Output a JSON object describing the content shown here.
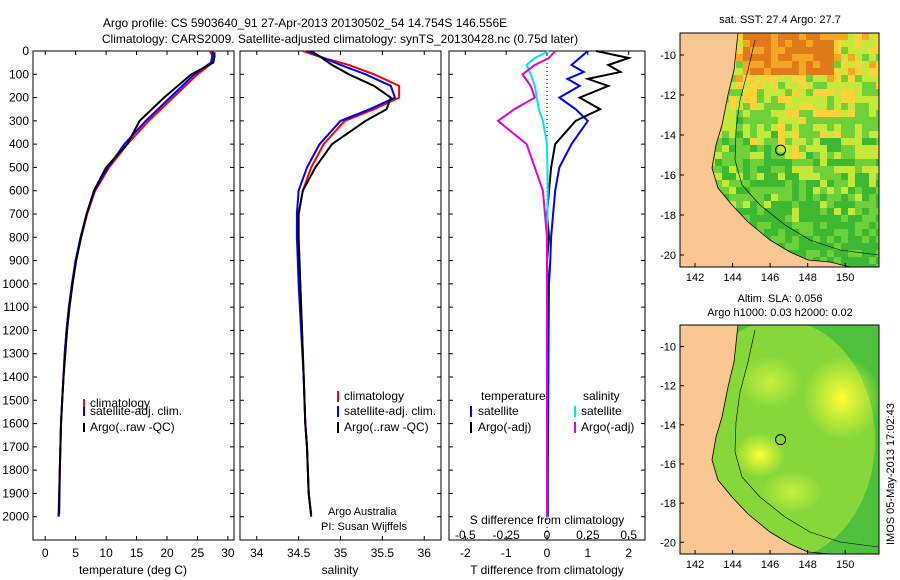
{
  "header": {
    "line1": "Argo profile: CS 5903640_91 27-Apr-2013 20130502_54 14.754S 146.556E",
    "line2": "Climatology: CARS2009. Satellite-adjusted climatology: synTS_20130428.nc (0.75d later)"
  },
  "colors": {
    "climatology": "#ff0000",
    "satellite": "#0000ff",
    "argo": "#000000",
    "sal_satellite": "#00e5ee",
    "sal_argo": "#e000e0",
    "land": "#f9c591"
  },
  "chart_data": [
    {
      "type": "line",
      "xlabel": "temperature (deg C)",
      "ylabel": "",
      "xlim": [
        -2,
        31
      ],
      "ylim": [
        2100,
        0
      ],
      "xticks": [
        "0",
        "5",
        "10",
        "15",
        "20",
        "25",
        "30"
      ],
      "yticks": [
        "0",
        "100",
        "200",
        "300",
        "400",
        "500",
        "600",
        "700",
        "800",
        "900",
        "1000",
        "1100",
        "1200",
        "1300",
        "1400",
        "1500",
        "1600",
        "1700",
        "1800",
        "1900",
        "2000"
      ],
      "legend": {
        "placement": "lower-left",
        "entries": [
          "climatology",
          "satellite-adj. clim.",
          "Argo(..raw -QC)"
        ]
      },
      "series": [
        {
          "name": "climatology",
          "x": [
            27.0,
            27.6,
            27.5,
            25.0,
            21.0,
            17.0,
            13.5,
            10.5,
            8.2,
            6.9,
            5.9,
            5.0,
            4.4,
            3.9,
            3.5,
            3.2,
            3.0,
            2.8,
            2.6,
            2.4,
            2.2
          ],
          "y": [
            0,
            25,
            50,
            100,
            200,
            300,
            400,
            500,
            600,
            700,
            800,
            900,
            1000,
            1100,
            1200,
            1300,
            1400,
            1500,
            1600,
            1800,
            2000
          ]
        },
        {
          "name": "satellite-adj. clim.",
          "x": [
            27.5,
            27.4,
            27.2,
            24.5,
            20.5,
            16.5,
            13.0,
            10.3,
            8.1,
            6.8,
            5.8,
            5.0,
            4.4,
            3.9,
            3.5,
            3.2,
            3.0,
            2.8,
            2.6,
            2.4,
            2.2
          ],
          "y": [
            0,
            25,
            50,
            100,
            200,
            300,
            400,
            500,
            600,
            700,
            800,
            900,
            1000,
            1100,
            1200,
            1300,
            1400,
            1500,
            1600,
            1800,
            2000
          ]
        },
        {
          "name": "Argo(..raw -QC)",
          "x": [
            27.8,
            27.8,
            27.6,
            24.0,
            19.5,
            15.5,
            13.5,
            10.0,
            8.0,
            6.8,
            5.9,
            5.1,
            4.5,
            4.0,
            3.6,
            3.3,
            3.0,
            2.8,
            2.6,
            2.4,
            2.3
          ],
          "y": [
            5,
            25,
            50,
            100,
            200,
            300,
            400,
            500,
            600,
            700,
            800,
            900,
            1000,
            1100,
            1200,
            1300,
            1400,
            1500,
            1600,
            1800,
            1990
          ]
        }
      ]
    },
    {
      "type": "line",
      "xlabel": "salinity",
      "ylabel": "",
      "xlim": [
        33.8,
        36.2
      ],
      "ylim": [
        2100,
        0
      ],
      "xticks": [
        "34",
        "34.5",
        "35",
        "35.5",
        "36"
      ],
      "legend": {
        "placement": "lower-right",
        "entries": [
          "climatology",
          "satellite-adj. clim.",
          "Argo(..raw -QC)"
        ]
      },
      "annotations": [
        "Argo Australia",
        "PI: Susan Wijffels"
      ],
      "series": [
        {
          "name": "climatology",
          "x": [
            34.55,
            34.8,
            35.1,
            35.4,
            35.7,
            35.7,
            35.4,
            35.05,
            34.8,
            34.65,
            34.55,
            34.5,
            34.5,
            34.5,
            34.52,
            34.54,
            34.56,
            34.58,
            34.6,
            34.62,
            34.65
          ],
          "y": [
            0,
            30,
            60,
            100,
            150,
            200,
            250,
            300,
            400,
            500,
            600,
            700,
            800,
            900,
            1000,
            1200,
            1400,
            1600,
            1700,
            1900,
            2000
          ]
        },
        {
          "name": "satellite-adj. clim.",
          "x": [
            34.6,
            34.8,
            35.0,
            35.3,
            35.6,
            35.65,
            35.35,
            35.0,
            34.75,
            34.6,
            34.5,
            34.48,
            34.48,
            34.49,
            34.5,
            34.53,
            34.56,
            34.58,
            34.6,
            34.62,
            34.65
          ],
          "y": [
            0,
            30,
            60,
            100,
            150,
            200,
            250,
            300,
            400,
            500,
            600,
            700,
            800,
            900,
            1000,
            1200,
            1400,
            1600,
            1700,
            1900,
            2000
          ]
        },
        {
          "name": "Argo(..raw -QC)",
          "x": [
            34.65,
            34.78,
            34.9,
            35.1,
            35.4,
            35.6,
            35.55,
            35.3,
            34.9,
            34.7,
            34.55,
            34.5,
            34.5,
            34.51,
            34.52,
            34.54,
            34.56,
            34.58,
            34.6,
            34.62,
            34.65
          ],
          "y": [
            0,
            30,
            60,
            100,
            150,
            200,
            250,
            300,
            400,
            500,
            600,
            700,
            800,
            900,
            1000,
            1200,
            1400,
            1600,
            1700,
            1900,
            1990
          ]
        }
      ]
    },
    {
      "type": "line",
      "xlabel": "T difference from climatology",
      "xlabel_top": "S difference from climatology",
      "xlim": [
        -2.4,
        2.4
      ],
      "ylim": [
        2100,
        0
      ],
      "xticks": [
        "-2",
        "-1",
        "0",
        "1",
        "2"
      ],
      "xticks_top": [
        "-0.5",
        "-0.25",
        "0",
        "0.25",
        "0.5"
      ],
      "legend": {
        "placement": "lower",
        "groups": [
          "temperature",
          "salinity"
        ],
        "entries": [
          "satellite",
          "Argo(-adj)",
          "satellite",
          "Argo(-adj)"
        ]
      },
      "series": [
        {
          "name": "satellite",
          "group": "temperature",
          "x": [
            1.0,
            0.8,
            0.6,
            0.9,
            0.5,
            0.8,
            0.3,
            0.7,
            1.0,
            0.6,
            0.3,
            0.2,
            0.15,
            0.1,
            0.08,
            0.05,
            0.04,
            0.03,
            0.02,
            0.02
          ],
          "y": [
            0,
            30,
            60,
            90,
            120,
            150,
            200,
            250,
            300,
            400,
            500,
            600,
            700,
            800,
            900,
            1000,
            1200,
            1500,
            1800,
            2000
          ]
        },
        {
          "name": "Argo(-adj)",
          "group": "temperature",
          "x": [
            1.2,
            2.0,
            1.5,
            1.8,
            1.0,
            1.5,
            0.8,
            1.3,
            0.7,
            0.2,
            0.1,
            0.05,
            0.0,
            0.05,
            0.0,
            0.02,
            0.0,
            0.0,
            0.0,
            0.0
          ],
          "y": [
            0,
            30,
            60,
            90,
            120,
            150,
            200,
            250,
            300,
            400,
            500,
            600,
            700,
            800,
            900,
            1000,
            1200,
            1500,
            1800,
            2000
          ]
        },
        {
          "name": "satellite",
          "group": "salinity",
          "x": [
            0.05,
            -0.3,
            -0.5,
            -0.4,
            -0.3,
            -0.25,
            -0.2,
            -0.1,
            0.0,
            0.02,
            0.0,
            0.0,
            0.0,
            0.0,
            0.0
          ],
          "y": [
            0,
            30,
            60,
            100,
            150,
            200,
            250,
            300,
            400,
            600,
            800,
            1000,
            1300,
            1600,
            2000
          ]
        },
        {
          "name": "Argo(-adj)",
          "group": "salinity",
          "x": [
            0.2,
            0.05,
            -0.3,
            -0.6,
            -0.4,
            -0.3,
            -0.8,
            -1.2,
            -0.5,
            -0.1,
            0.0,
            0.0,
            0.0,
            0.0,
            0.0
          ],
          "y": [
            0,
            30,
            60,
            100,
            150,
            200,
            250,
            300,
            400,
            600,
            800,
            1000,
            1300,
            1600,
            2000
          ]
        }
      ]
    },
    {
      "type": "heatmap",
      "title": "sat. SST: 27.4  Argo: 27.7",
      "xticks": [
        "142",
        "144",
        "146",
        "148",
        "150"
      ],
      "yticks": [
        "-10",
        "-12",
        "-14",
        "-16",
        "-18",
        "-20"
      ],
      "xlim": [
        141.2,
        151.8
      ],
      "ylim": [
        -20.6,
        -8.9
      ],
      "marker": {
        "lon": 146.556,
        "lat": -14.754
      }
    },
    {
      "type": "heatmap",
      "title": "Altim. SLA: 0.056",
      "subtitle": "Argo h1000: 0.03 h2000: 0.02",
      "xticks": [
        "142",
        "144",
        "146",
        "148",
        "150"
      ],
      "yticks": [
        "-10",
        "-12",
        "-14",
        "-16",
        "-18",
        "-20"
      ],
      "xlim": [
        141.2,
        151.8
      ],
      "ylim": [
        -20.6,
        -8.9
      ],
      "marker": {
        "lon": 146.556,
        "lat": -14.754
      }
    }
  ],
  "footer": {
    "credit": "IMOS 05-May-2013 17:02:43"
  }
}
